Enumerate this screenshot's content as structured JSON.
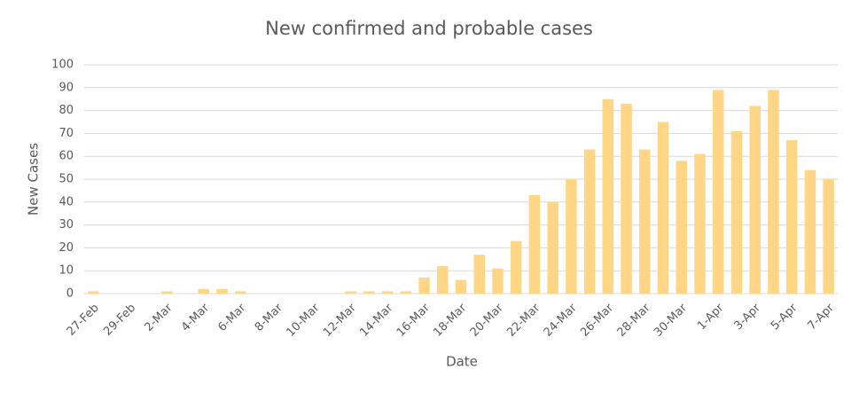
{
  "chart_data": {
    "type": "bar",
    "title": "New confirmed and probable cases",
    "x_label": "Date",
    "y_label": "New Cases",
    "categories": [
      "27-Feb",
      null,
      "29-Feb",
      null,
      "2-Mar",
      null,
      "4-Mar",
      null,
      "6-Mar",
      null,
      "8-Mar",
      null,
      "10-Mar",
      null,
      "12-Mar",
      null,
      "14-Mar",
      null,
      "16-Mar",
      null,
      "18-Mar",
      null,
      "20-Mar",
      null,
      "22-Mar",
      null,
      "24-Mar",
      null,
      "26-Mar",
      null,
      "28-Mar",
      null,
      "30-Mar",
      null,
      "1-Apr",
      null,
      "3-Apr",
      null,
      "5-Apr",
      null,
      "7-Apr"
    ],
    "values": [
      1,
      0,
      0,
      0,
      1,
      0,
      2,
      2,
      1,
      0,
      0,
      0,
      0,
      0,
      1,
      1,
      1,
      1,
      7,
      12,
      6,
      17,
      11,
      23,
      43,
      40,
      50,
      63,
      85,
      83,
      63,
      75,
      58,
      61,
      89,
      71,
      82,
      89,
      67,
      54,
      50
    ],
    "color": "#ffd685",
    "ylim": [
      0,
      100
    ],
    "yticks": [
      0,
      10,
      20,
      30,
      40,
      50,
      60,
      70,
      80,
      90,
      100
    ],
    "grid": true
  }
}
